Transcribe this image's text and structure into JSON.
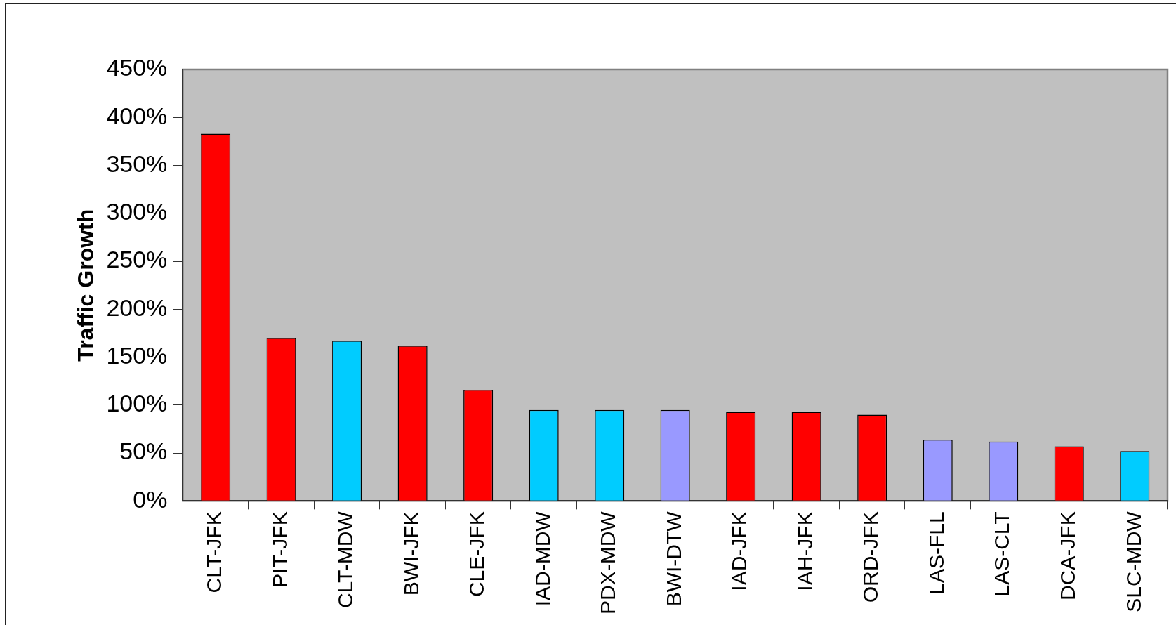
{
  "chart_data": {
    "type": "bar",
    "ylabel": "Traffic Growth",
    "categories": [
      "CLT-JFK",
      "PIT-JFK",
      "CLT-MDW",
      "BWI-JFK",
      "CLE-JFK",
      "IAD-MDW",
      "PDX-MDW",
      "BWI-DTW",
      "IAD-JFK",
      "IAH-JFK",
      "ORD-JFK",
      "LAS-FLL",
      "LAS-CLT",
      "DCA-JFK",
      "SLC-MDW"
    ],
    "values": [
      383,
      170,
      167,
      162,
      116,
      95,
      95,
      95,
      93,
      93,
      90,
      64,
      62,
      57,
      52
    ],
    "colors": [
      "#ff0000",
      "#ff0000",
      "#00ccff",
      "#ff0000",
      "#ff0000",
      "#00ccff",
      "#00ccff",
      "#9999ff",
      "#ff0000",
      "#ff0000",
      "#ff0000",
      "#9999ff",
      "#9999ff",
      "#ff0000",
      "#00ccff"
    ],
    "ylim": [
      0,
      450
    ],
    "yticks": [
      {
        "value": 0,
        "label": "0%"
      },
      {
        "value": 50,
        "label": "50%"
      },
      {
        "value": 100,
        "label": "100%"
      },
      {
        "value": 150,
        "label": "150%"
      },
      {
        "value": 200,
        "label": "200%"
      },
      {
        "value": 250,
        "label": "250%"
      },
      {
        "value": 300,
        "label": "300%"
      },
      {
        "value": 350,
        "label": "350%"
      },
      {
        "value": 400,
        "label": "400%"
      },
      {
        "value": 450,
        "label": "450%"
      }
    ],
    "grid": false,
    "legend": false
  }
}
